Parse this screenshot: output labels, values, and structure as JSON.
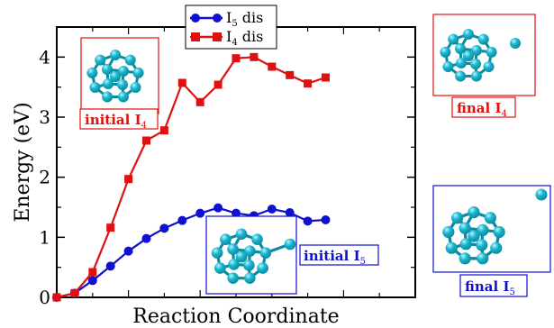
{
  "chart_data": {
    "type": "line",
    "xlabel": "Reaction Coordinate",
    "ylabel": "Energy (eV)",
    "ylim": [
      0,
      4.5
    ],
    "xlim": [
      0,
      20
    ],
    "yticks": [
      "0",
      "1",
      "2",
      "3",
      "4"
    ],
    "grid": false,
    "legend_position": "top-center",
    "series": [
      {
        "name": "I5 dis",
        "legend_main": "I",
        "legend_sub": "5",
        "legend_tail": " dis",
        "color": "#1010d0",
        "marker": "circle",
        "x": [
          0,
          1,
          2,
          3,
          4,
          5,
          6,
          7,
          8,
          9,
          10,
          11,
          12,
          13,
          14,
          15,
          16,
          17,
          18,
          19,
          20
        ],
        "y": [
          0.0,
          0.07,
          0.28,
          0.52,
          0.77,
          0.98,
          1.15,
          1.28,
          1.4,
          1.49,
          1.4,
          1.36,
          1.47,
          1.41,
          1.27,
          1.29,
          null,
          null,
          null,
          null,
          null
        ]
      },
      {
        "name": "I4 dis",
        "legend_main": "I",
        "legend_sub": "4",
        "legend_tail": " dis",
        "color": "#e01010",
        "marker": "square",
        "x": [
          0,
          1,
          2,
          3,
          4,
          5,
          6,
          7,
          8,
          9,
          10,
          11,
          12,
          13,
          14,
          15
        ],
        "y": [
          0.0,
          0.07,
          0.42,
          1.16,
          1.97,
          2.61,
          2.78,
          3.57,
          3.25,
          3.54,
          3.98,
          4.0,
          3.84,
          3.7,
          3.56,
          3.66
        ]
      }
    ],
    "annotations": [
      {
        "id": "initial-i4",
        "main": "initial I",
        "sub": "4",
        "color": "#e01010"
      },
      {
        "id": "final-i4",
        "main": "final I",
        "sub": "4",
        "color": "#e01010"
      },
      {
        "id": "initial-i5",
        "main": "initial I",
        "sub": "5",
        "color": "#1010d0"
      },
      {
        "id": "final-i5",
        "main": "final I",
        "sub": "5",
        "color": "#1010d0"
      }
    ]
  },
  "colors": {
    "atom_fill": "#1ab8d0",
    "atom_dark": "#0e8aa0",
    "atom_light": "#b8f4ff",
    "red": "#e01010",
    "blue": "#1010d0"
  }
}
